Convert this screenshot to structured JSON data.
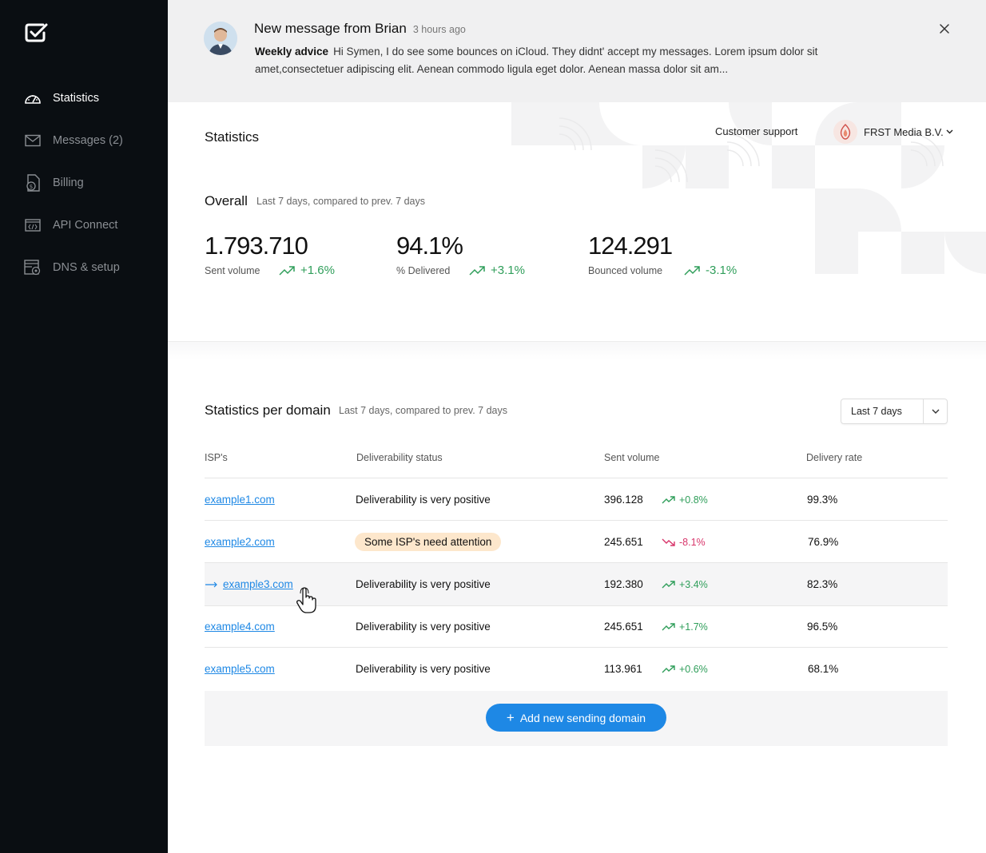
{
  "nav": {
    "items": [
      {
        "label": "Statistics",
        "icon": "speedometer-icon",
        "active": true
      },
      {
        "label": "Messages (2)",
        "icon": "envelope-icon",
        "active": false
      },
      {
        "label": "Billing",
        "icon": "invoice-icon",
        "active": false
      },
      {
        "label": "API Connect",
        "icon": "code-window-icon",
        "active": false
      },
      {
        "label": "DNS & setup",
        "icon": "server-gear-icon",
        "active": false
      }
    ]
  },
  "notification": {
    "title": "New message from Brian",
    "time": "3 hours ago",
    "tag": "Weekly advice",
    "body": "Hi Symen, I do see some bounces on iCloud. They didnt' accept my messages. Lorem ipsum dolor sit amet,consectetuer adipiscing elit. Aenean commodo ligula eget dolor. Aenean massa dolor sit am..."
  },
  "header": {
    "title": "Statistics",
    "support": "Customer support",
    "org_name": "FRST Media B.V."
  },
  "overall": {
    "title": "Overall",
    "subtitle": "Last 7 days, compared to prev. 7 days",
    "stats": [
      {
        "value": "1.793.710",
        "label": "Sent volume",
        "change": "+1.6%"
      },
      {
        "value": "94.1%",
        "label": "% Delivered",
        "change": "+3.1%"
      },
      {
        "value": "124.291",
        "label": "Bounced volume",
        "change": "-3.1%"
      }
    ]
  },
  "domains": {
    "title": "Statistics per domain",
    "subtitle": "Last 7 days, compared to prev. 7 days",
    "range": "Last 7 days",
    "columns": [
      "ISP's",
      "Deliverability status",
      "Sent volume",
      "Delivery rate"
    ],
    "rows": [
      {
        "domain": "example1.com",
        "status": "Deliverability is very positive",
        "attention": false,
        "volume": "396.128",
        "change": "+0.8%",
        "direction": "up",
        "rate": "99.3%"
      },
      {
        "domain": "example2.com",
        "status": "Some ISP's need attention",
        "attention": true,
        "volume": "245.651",
        "change": "-8.1%",
        "direction": "down",
        "rate": "76.9%"
      },
      {
        "domain": "example3.com",
        "status": "Deliverability is very positive",
        "attention": false,
        "volume": "192.380",
        "change": "+3.4%",
        "direction": "up",
        "rate": "82.3%"
      },
      {
        "domain": "example4.com",
        "status": "Deliverability is very positive",
        "attention": false,
        "volume": "245.651",
        "change": "+1.7%",
        "direction": "up",
        "rate": "96.5%"
      },
      {
        "domain": "example5.com",
        "status": "Deliverability is very positive",
        "attention": false,
        "volume": "113.961",
        "change": "+0.6%",
        "direction": "up",
        "rate": "68.1%"
      }
    ],
    "add_label": "Add new sending domain"
  },
  "colors": {
    "sidebar": "#0a0e12",
    "accent": "#1e88e5",
    "positive": "#2f9e5a",
    "negative": "#d8356a",
    "attention": "#fde7cc"
  }
}
